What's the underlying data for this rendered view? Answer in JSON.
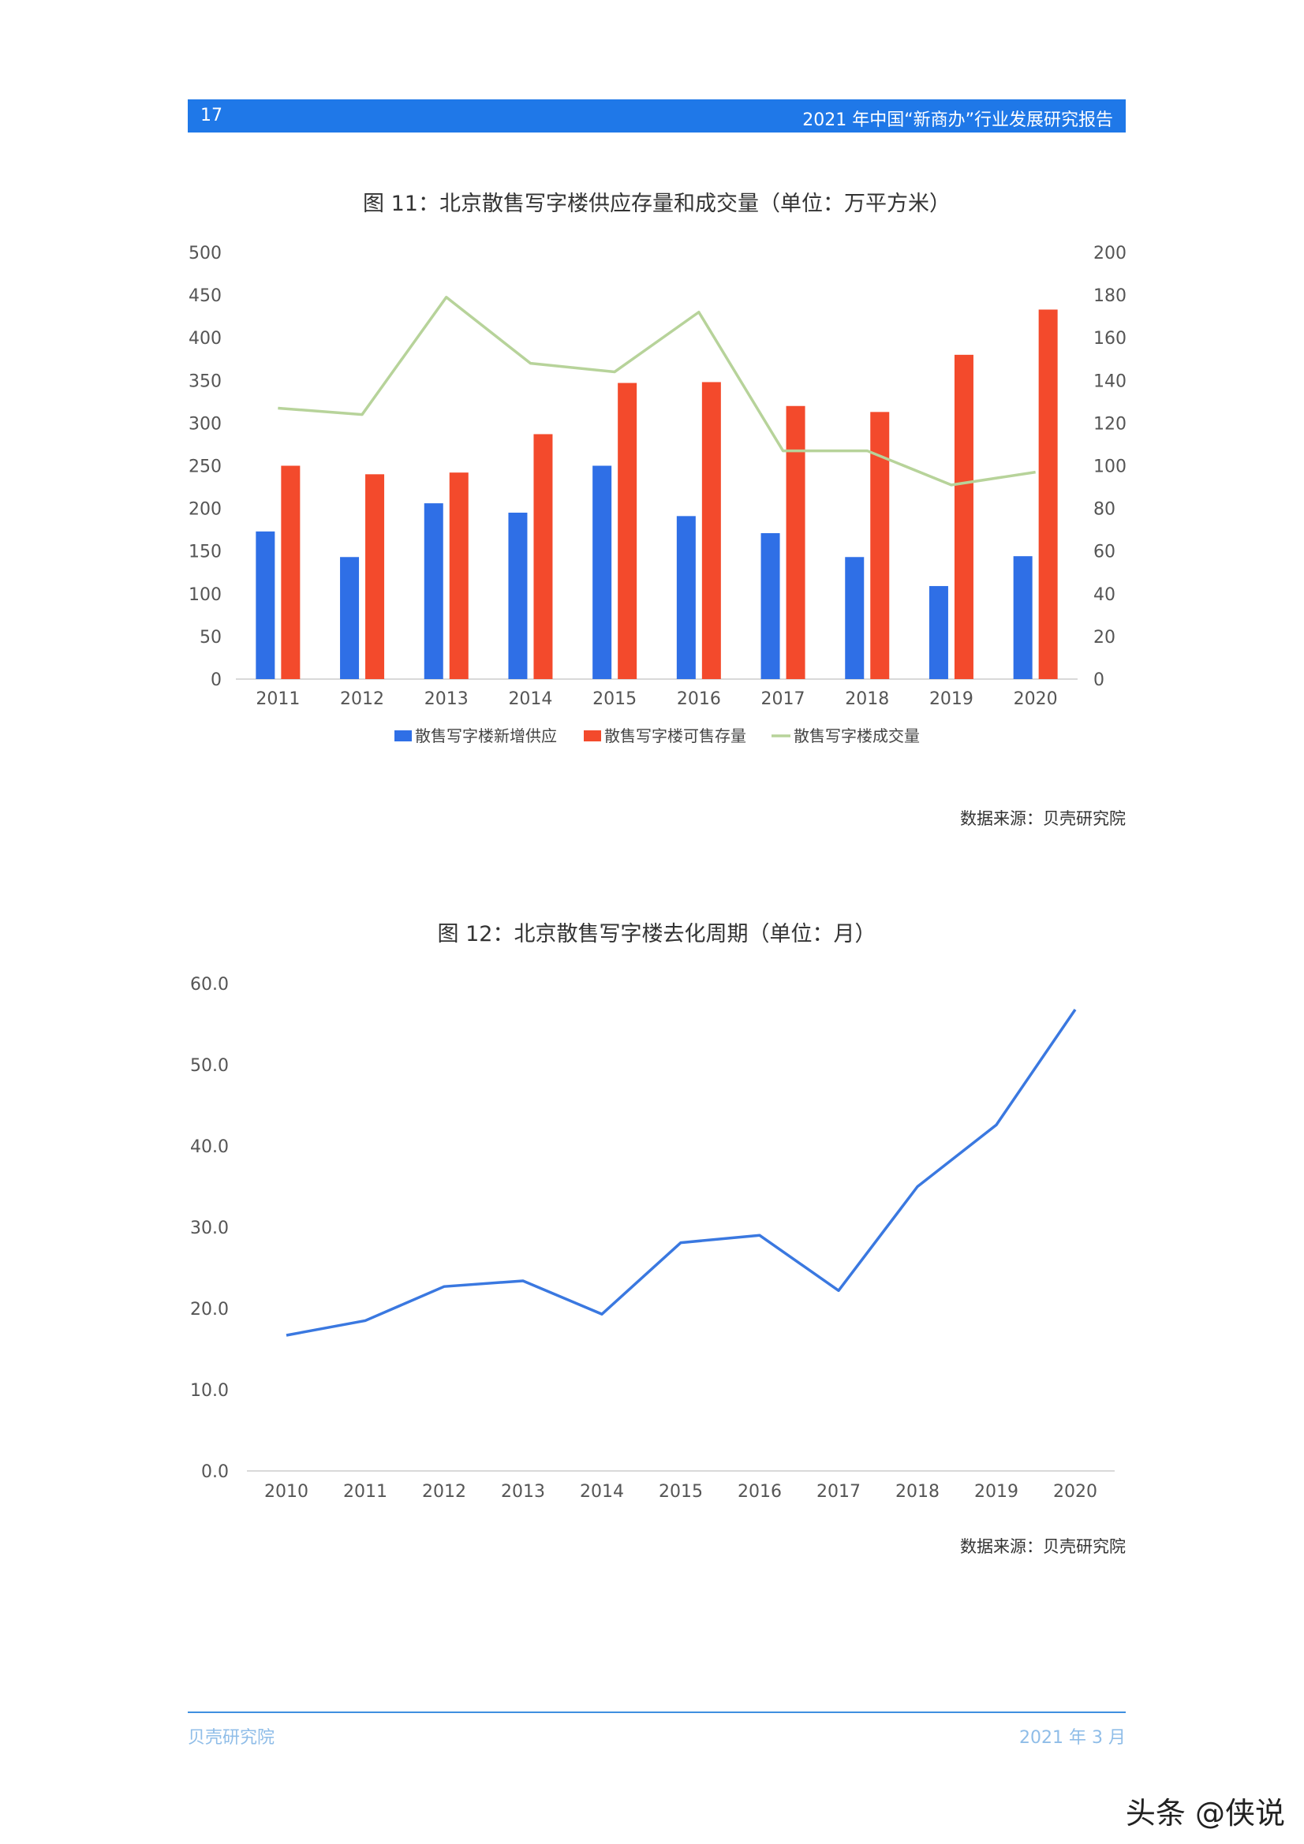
{
  "header": {
    "page_number": "17",
    "report_title": "2021 年中国“新商办”行业发展研究报告"
  },
  "figure11": {
    "title": "图 11：北京散售写字楼供应存量和成交量（单位：万平方米）",
    "source": "数据来源：贝壳研究院"
  },
  "figure12": {
    "title": "图 12：北京散售写字楼去化周期（单位：月）",
    "source": "数据来源：贝壳研究院"
  },
  "footer": {
    "left": "贝壳研究院",
    "right": "2021 年 3 月"
  },
  "watermark": "头条 @侠说",
  "colors": {
    "header": "#1f78e8",
    "blue_bar": "#2f6fe6",
    "red_bar": "#f34a2c",
    "green_line": "#b7d39a",
    "blue_line": "#3a78e0"
  },
  "chart_data": [
    {
      "type": "bar",
      "categories": [
        "2011",
        "2012",
        "2013",
        "2014",
        "2015",
        "2016",
        "2017",
        "2018",
        "2019",
        "2020"
      ],
      "series": [
        {
          "name": "散售写字楼新增供应",
          "axis": "left",
          "type": "bar",
          "values": [
            173,
            143,
            206,
            195,
            250,
            191,
            171,
            143,
            109,
            144
          ]
        },
        {
          "name": "散售写字楼可售存量",
          "axis": "left",
          "type": "bar",
          "values": [
            250,
            240,
            242,
            287,
            347,
            348,
            320,
            313,
            380,
            433
          ]
        },
        {
          "name": "散售写字楼成交量",
          "axis": "right",
          "type": "line",
          "values": [
            127,
            124,
            179,
            148,
            144,
            172,
            107,
            107,
            91,
            97
          ]
        }
      ],
      "ylim_left": [
        0,
        500
      ],
      "yticks_left": [
        "0",
        "50",
        "100",
        "150",
        "200",
        "250",
        "300",
        "350",
        "400",
        "450",
        "500"
      ],
      "ylim_right": [
        0,
        200
      ],
      "yticks_right": [
        "0",
        "20",
        "40",
        "60",
        "80",
        "100",
        "120",
        "140",
        "160",
        "180",
        "200"
      ],
      "legend": "bottom",
      "grid": false
    },
    {
      "type": "line",
      "categories": [
        "2010",
        "2011",
        "2012",
        "2013",
        "2014",
        "2015",
        "2016",
        "2017",
        "2018",
        "2019",
        "2020"
      ],
      "series": [
        {
          "values": [
            16.7,
            18.5,
            22.7,
            23.4,
            19.3,
            28.1,
            29.0,
            22.2,
            35.0,
            42.6,
            56.8
          ]
        }
      ],
      "ylim": [
        0,
        60
      ],
      "yticks": [
        "0.0",
        "10.0",
        "20.0",
        "30.0",
        "40.0",
        "50.0",
        "60.0"
      ],
      "grid": false
    }
  ]
}
